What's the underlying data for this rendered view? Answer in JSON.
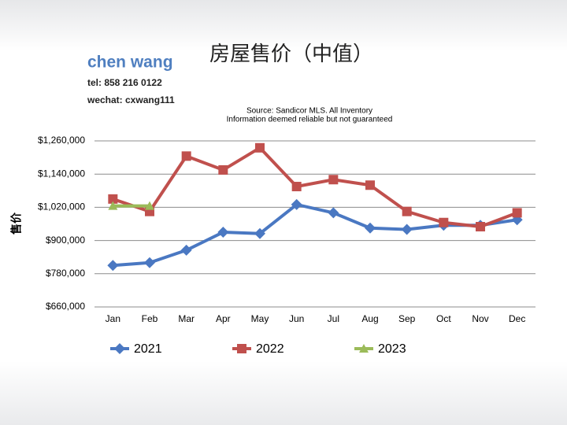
{
  "chart_data": {
    "type": "line",
    "title": "房屋售价（中值）",
    "agent_name": "chen wang",
    "tel": "tel: 858 216 0122",
    "wechat": "wechat: cxwang111",
    "source_lines": [
      "Source: Sandicor MLS. All Inventory",
      "Information deemed reliable but not guaranteed"
    ],
    "y_label": "售价",
    "categories": [
      "Jan",
      "Feb",
      "Mar",
      "Apr",
      "May",
      "Jun",
      "Jul",
      "Aug",
      "Sep",
      "Oct",
      "Nov",
      "Dec"
    ],
    "series": [
      {
        "name": "2021",
        "color": "#4a78c2",
        "marker": "diamond",
        "values": [
          810000,
          820000,
          865000,
          930000,
          925000,
          1030000,
          1000000,
          945000,
          940000,
          955000,
          955000,
          975000
        ]
      },
      {
        "name": "2022",
        "color": "#c0504d",
        "marker": "square",
        "values": [
          1050000,
          1005000,
          1205000,
          1155000,
          1235000,
          1095000,
          1120000,
          1100000,
          1005000,
          965000,
          950000,
          1000000
        ]
      },
      {
        "name": "2023",
        "color": "#9bbb59",
        "marker": "triangle",
        "values": [
          1025000,
          1025000,
          null,
          null,
          null,
          null,
          null,
          null,
          null,
          null,
          null,
          null
        ]
      }
    ],
    "ylim": [
      660000,
      1260000
    ],
    "yticks": [
      {
        "value": 660000,
        "label": "$660,000"
      },
      {
        "value": 780000,
        "label": "$780,000"
      },
      {
        "value": 900000,
        "label": "$900,000"
      },
      {
        "value": 1020000,
        "label": "$1,020,000"
      },
      {
        "value": 1140000,
        "label": "$1,140,000"
      },
      {
        "value": 1260000,
        "label": "$1,260,000"
      }
    ],
    "grid": true,
    "legend": "bottom"
  }
}
